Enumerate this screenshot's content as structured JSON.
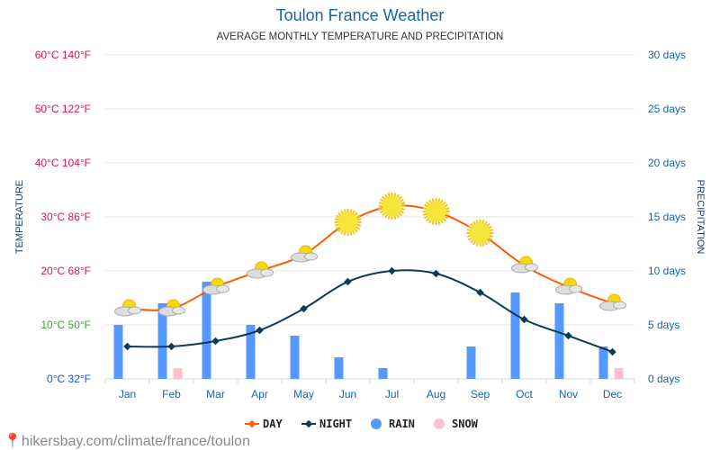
{
  "chart_data": {
    "type": "line",
    "title": "Toulon France Weather",
    "subtitle": "AVERAGE MONTHLY TEMPERATURE AND PRECIPITATION",
    "ylabel_left": "TEMPERATURE",
    "ylabel_right": "PRECIPITATION",
    "categories": [
      "Jan",
      "Feb",
      "Mar",
      "Apr",
      "May",
      "Jun",
      "Jul",
      "Aug",
      "Sep",
      "Oct",
      "Nov",
      "Dec"
    ],
    "left_ticks": [
      "0°C 32°F",
      "10°C 50°F",
      "20°C 68°F",
      "30°C 86°F",
      "40°C 104°F",
      "50°C 122°F",
      "60°C 140°F"
    ],
    "right_ticks": [
      "0 days",
      "5 days",
      "10 days",
      "15 days",
      "20 days",
      "25 days",
      "30 days"
    ],
    "ylim_left": [
      0,
      60
    ],
    "ylim_right": [
      0,
      30
    ],
    "series": [
      {
        "name": "DAY",
        "type": "line",
        "axis": "left",
        "color": "#ff5a00",
        "values": [
          13,
          13,
          17,
          20,
          23,
          29,
          32,
          31,
          27,
          21,
          17,
          14
        ]
      },
      {
        "name": "NIGHT",
        "type": "line",
        "axis": "left",
        "color": "#0d3b55",
        "values": [
          6,
          6,
          7,
          9,
          13,
          18,
          20,
          19.5,
          16,
          11,
          8,
          5
        ]
      },
      {
        "name": "RAIN",
        "type": "bar",
        "axis": "right",
        "color": "#5599ff",
        "values": [
          5,
          7,
          9,
          5,
          4,
          2,
          1,
          0,
          3,
          8,
          7,
          3
        ]
      },
      {
        "name": "SNOW",
        "type": "bar",
        "axis": "right",
        "color": "#ffc0cb",
        "values": [
          0,
          1,
          0,
          0,
          0,
          0,
          0,
          0,
          0,
          0,
          0,
          1
        ]
      }
    ],
    "icons": [
      "partly-cloudy",
      "partly-cloudy",
      "partly-cloudy",
      "partly-cloudy",
      "partly-cloudy",
      "sun",
      "sun",
      "sun",
      "sun",
      "partly-cloudy",
      "partly-cloudy",
      "partly-cloudy"
    ],
    "grid": true,
    "legend": "bottom"
  },
  "footer": {
    "url": "hikersbay.com/climate/france/toulon"
  }
}
